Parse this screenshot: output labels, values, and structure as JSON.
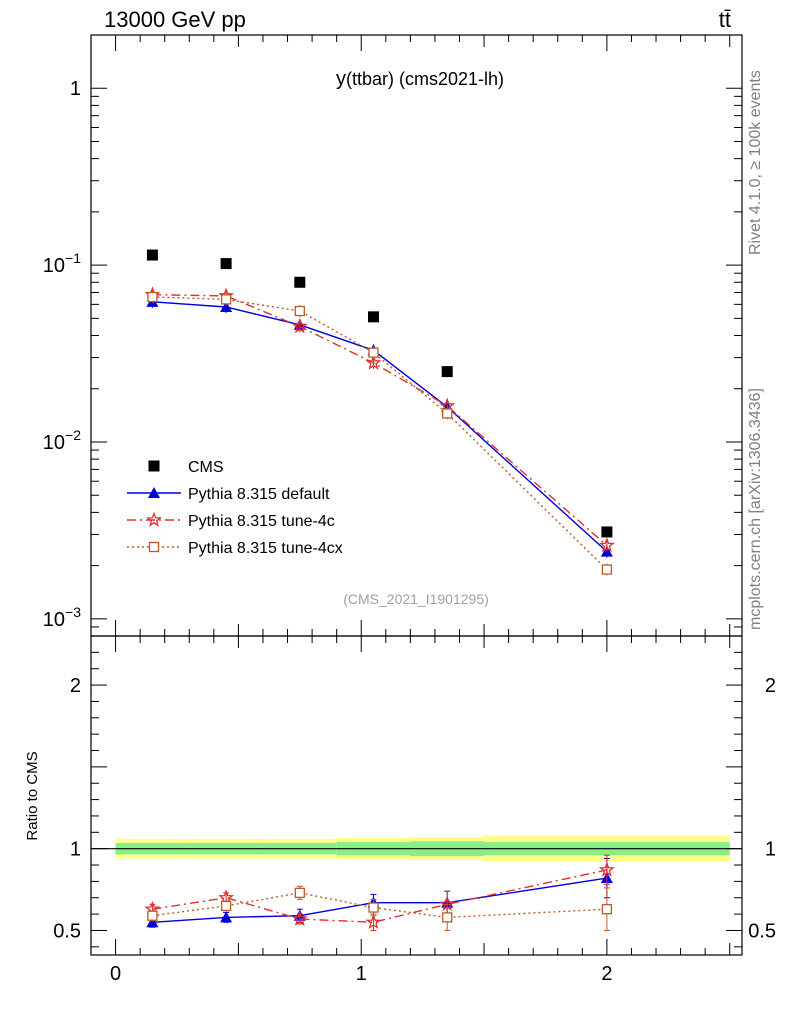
{
  "header": {
    "energy": "13000 GeV pp",
    "process": "tt̄"
  },
  "side_labels": {
    "rivet": "Rivet 4.1.0, ≥ 100k events",
    "mcplots": "mcplots.cern.ch [arXiv:1306.3436]"
  },
  "colors": {
    "cms": "#000000",
    "default": "#0000dd",
    "tune4c": "#e03030",
    "tune4cx": "#b85c28",
    "band_yellow": "#ffff88",
    "band_green": "#88ee88"
  },
  "chart_data": [
    {
      "type": "line",
      "title_y": "y",
      "title_rest": "(ttbar) (cms2021-lh)",
      "annotation": "(CMS_2021_I1901295)",
      "yscale": "log",
      "xlim": [
        -0.1,
        2.55
      ],
      "ylim": [
        0.0008,
        2
      ],
      "yticks": [
        {
          "value": 1,
          "label": "1",
          "sup": ""
        },
        {
          "value": 0.1,
          "label": "10",
          "sup": "−1"
        },
        {
          "value": 0.01,
          "label": "10",
          "sup": "−2"
        },
        {
          "value": 0.001,
          "label": "10",
          "sup": "−3"
        }
      ],
      "x": [
        0.15,
        0.45,
        0.75,
        1.05,
        1.35,
        2.0
      ],
      "series": [
        {
          "name": "CMS",
          "key": "cms",
          "marker": "square",
          "values": [
            0.114,
            0.102,
            0.08,
            0.051,
            0.025,
            0.0031
          ]
        },
        {
          "name": "Pythia 8.315 default",
          "key": "default",
          "marker": "triangle",
          "values": [
            0.062,
            0.058,
            0.046,
            0.033,
            0.0158,
            0.0024
          ]
        },
        {
          "name": "Pythia 8.315 tune-4c",
          "key": "tune4c",
          "marker": "star",
          "values": [
            0.068,
            0.067,
            0.045,
            0.028,
            0.016,
            0.0026
          ]
        },
        {
          "name": "Pythia 8.315 tune-4cx",
          "key": "tune4cx",
          "marker": "opensquare",
          "values": [
            0.066,
            0.064,
            0.055,
            0.032,
            0.0145,
            0.0019
          ]
        }
      ]
    },
    {
      "type": "line",
      "ylabel": "Ratio to CMS",
      "xlim": [
        -0.1,
        2.55
      ],
      "ylim": [
        0.35,
        2.3
      ],
      "yticks": [
        {
          "value": 0.5,
          "label": "0.5"
        },
        {
          "value": 1,
          "label": "1"
        },
        {
          "value": 2,
          "label": "2"
        }
      ],
      "xticks": [
        {
          "value": 0,
          "label": "0"
        },
        {
          "value": 1,
          "label": "1"
        },
        {
          "value": 2,
          "label": "2"
        }
      ],
      "bands": [
        {
          "x0": 0.0,
          "x1": 0.3,
          "yellow": 0.06,
          "green": 0.035
        },
        {
          "x0": 0.3,
          "x1": 0.6,
          "yellow": 0.06,
          "green": 0.035
        },
        {
          "x0": 0.6,
          "x1": 0.9,
          "yellow": 0.06,
          "green": 0.035
        },
        {
          "x0": 0.9,
          "x1": 1.2,
          "yellow": 0.065,
          "green": 0.04
        },
        {
          "x0": 1.2,
          "x1": 1.5,
          "yellow": 0.07,
          "green": 0.045
        },
        {
          "x0": 1.5,
          "x1": 2.5,
          "yellow": 0.08,
          "green": 0.04
        }
      ],
      "x": [
        0.15,
        0.45,
        0.75,
        1.05,
        1.35,
        2.0
      ],
      "series": [
        {
          "name": "Pythia 8.315 default",
          "key": "default",
          "marker": "triangle",
          "values": [
            0.55,
            0.58,
            0.59,
            0.67,
            0.67,
            0.82
          ],
          "errors": [
            0.03,
            0.03,
            0.04,
            0.05,
            0.07,
            0.12
          ]
        },
        {
          "name": "Pythia 8.315 tune-4c",
          "key": "tune4c",
          "marker": "star",
          "values": [
            0.63,
            0.7,
            0.57,
            0.55,
            0.66,
            0.87
          ],
          "errors": [
            0.03,
            0.03,
            0.03,
            0.05,
            0.08,
            0.09
          ]
        },
        {
          "name": "Pythia 8.315 tune-4cx",
          "key": "tune4cx",
          "marker": "opensquare",
          "values": [
            0.59,
            0.65,
            0.73,
            0.64,
            0.58,
            0.63
          ],
          "errors": [
            0.03,
            0.03,
            0.04,
            0.05,
            0.08,
            0.13
          ]
        }
      ]
    }
  ]
}
